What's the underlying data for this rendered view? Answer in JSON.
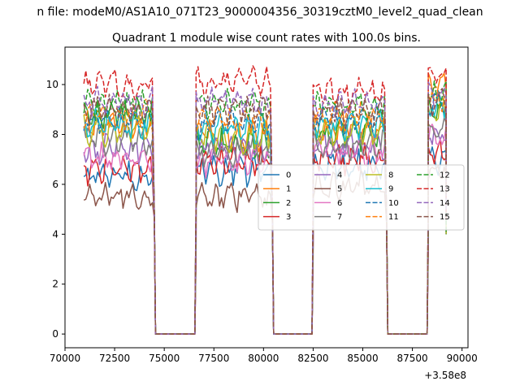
{
  "chart_data": {
    "type": "line",
    "suptitle": "n file: modeM0/AS1A10_071T23_9000004356_30319cztM0_level2_quad_clean",
    "title": "Quadrant 1 module wise count rates with 100.0s bins.",
    "xlabel": "",
    "ylabel": "",
    "x_offset_label": "+3.58e8",
    "xlim": [
      70000,
      90300
    ],
    "ylim": [
      -0.55,
      11.5
    ],
    "xticks": [
      70000,
      72500,
      75000,
      77500,
      80000,
      82500,
      85000,
      87500,
      90000
    ],
    "xtick_labels": [
      "70000",
      "72500",
      "75000",
      "77500",
      "80000",
      "82500",
      "85000",
      "87500",
      "90000"
    ],
    "yticks": [
      0,
      2,
      4,
      6,
      8,
      10
    ],
    "ytick_labels": [
      "0",
      "2",
      "4",
      "6",
      "8",
      "10"
    ],
    "bin_seconds": 100.0,
    "segments": [
      [
        70950,
        74500
      ],
      [
        76600,
        80450
      ],
      [
        82500,
        86200
      ],
      [
        88300,
        89200
      ]
    ],
    "legend_position": "center-right",
    "legend_columns": 4,
    "series": [
      {
        "name": "0",
        "color": "#1f77b4",
        "style": "solid",
        "levels": [
          6.35,
          6.55,
          6.75,
          7.0
        ]
      },
      {
        "name": "1",
        "color": "#ff7f0e",
        "style": "solid",
        "levels": [
          8.5,
          8.0,
          8.3,
          9.9
        ]
      },
      {
        "name": "2",
        "color": "#2ca02c",
        "style": "solid",
        "levels": [
          8.9,
          7.6,
          8.0,
          9.0
        ]
      },
      {
        "name": "3",
        "color": "#d62728",
        "style": "solid",
        "levels": [
          6.6,
          6.9,
          7.0,
          7.3
        ]
      },
      {
        "name": "4",
        "color": "#9467bd",
        "style": "solid",
        "levels": [
          7.4,
          7.4,
          7.6,
          8.0
        ]
      },
      {
        "name": "5",
        "color": "#8c564b",
        "style": "solid",
        "levels": [
          5.5,
          5.5,
          5.9,
          6.5
        ]
      },
      {
        "name": "6",
        "color": "#e377c2",
        "style": "solid",
        "levels": [
          7.0,
          6.9,
          7.3,
          7.8
        ]
      },
      {
        "name": "7",
        "color": "#7f7f7f",
        "style": "solid",
        "levels": [
          7.8,
          7.3,
          7.6,
          8.3
        ]
      },
      {
        "name": "8",
        "color": "#bcbd22",
        "style": "solid",
        "levels": [
          8.1,
          7.9,
          8.1,
          8.9
        ]
      },
      {
        "name": "9",
        "color": "#17becf",
        "style": "solid",
        "levels": [
          8.4,
          8.2,
          8.4,
          9.1
        ]
      },
      {
        "name": "10",
        "color": "#1f77b4",
        "style": "dashed",
        "levels": [
          8.6,
          8.4,
          8.6,
          9.3
        ]
      },
      {
        "name": "11",
        "color": "#ff7f0e",
        "style": "dashed",
        "levels": [
          8.8,
          8.6,
          8.8,
          9.6
        ]
      },
      {
        "name": "12",
        "color": "#2ca02c",
        "style": "dashed",
        "levels": [
          9.2,
          9.2,
          9.1,
          9.5
        ]
      },
      {
        "name": "13",
        "color": "#d62728",
        "style": "dashed",
        "levels": [
          10.0,
          10.1,
          9.7,
          10.3
        ]
      },
      {
        "name": "14",
        "color": "#9467bd",
        "style": "dashed",
        "levels": [
          9.3,
          9.3,
          9.2,
          9.6
        ]
      },
      {
        "name": "15",
        "color": "#8c564b",
        "style": "dashed",
        "levels": [
          9.0,
          9.0,
          8.9,
          9.3
        ]
      }
    ]
  }
}
